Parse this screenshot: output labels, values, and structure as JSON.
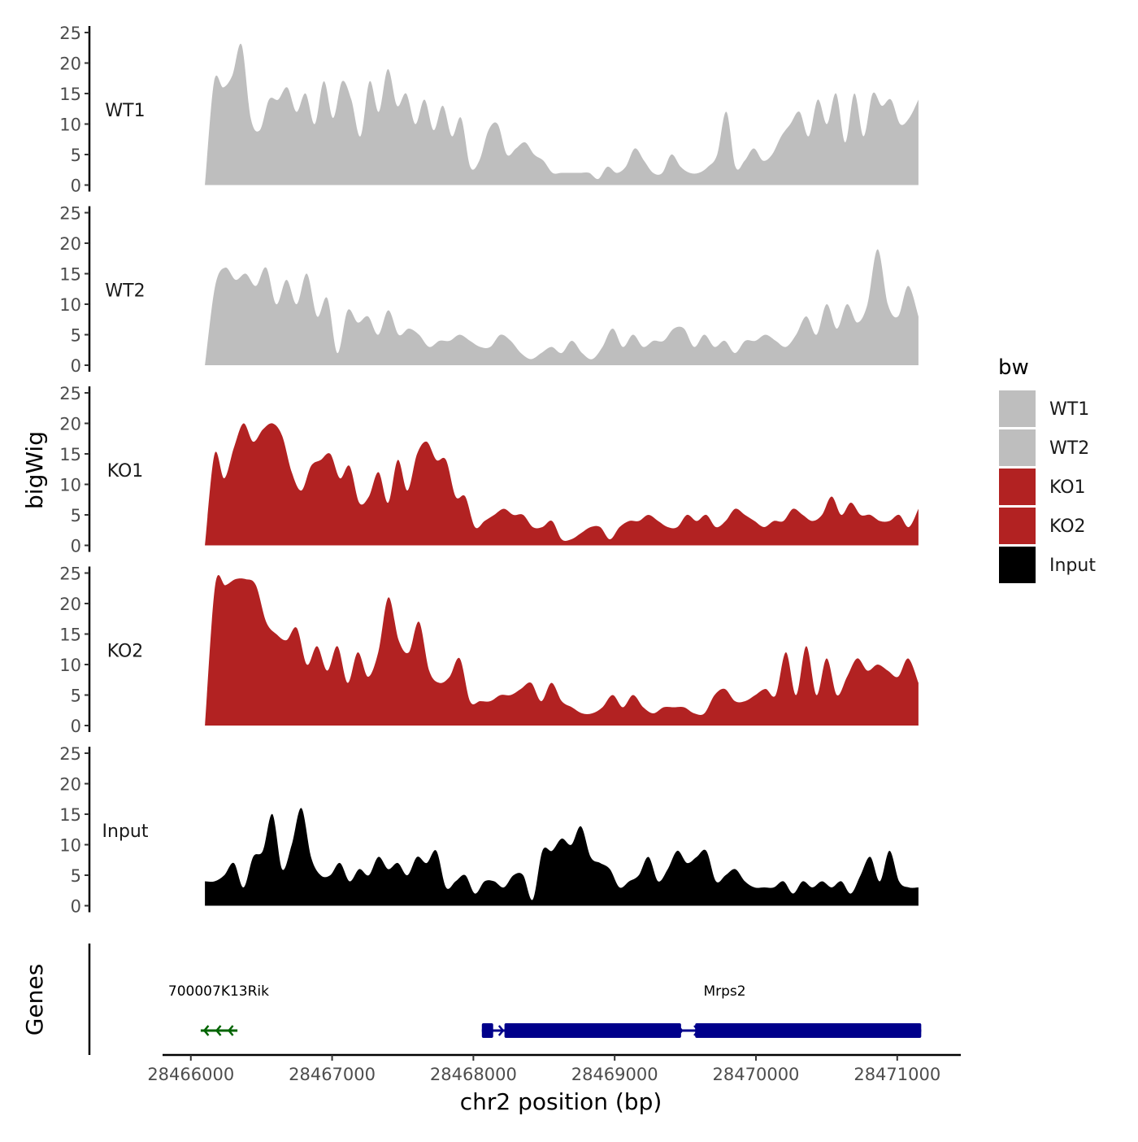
{
  "chart_data": {
    "type": "area",
    "y_axis_title": "bigWig",
    "x_axis_title": "chr2 position (bp)",
    "legend_title": "bw",
    "legend_position": "right",
    "x_range": [
      28465800,
      28471450
    ],
    "data_x_range": [
      28466100,
      28471150
    ],
    "y_range": [
      0,
      25
    ],
    "y_ticks": [
      0,
      5,
      10,
      15,
      20,
      25
    ],
    "x_ticks": [
      28466000,
      28467000,
      28468000,
      28469000,
      28470000,
      28471000
    ],
    "grid": false,
    "series": [
      {
        "name": "WT1",
        "color": "#bebebe",
        "values": [
          0,
          17,
          16,
          18,
          23,
          11,
          9,
          14,
          14,
          16,
          12,
          15,
          10,
          17,
          11,
          17,
          14,
          8,
          17,
          12,
          19,
          13,
          15,
          10,
          14,
          9,
          13,
          8,
          11,
          3,
          4,
          9,
          10,
          5,
          6,
          7,
          5,
          4,
          2,
          2,
          2,
          2,
          2,
          1,
          3,
          2,
          3,
          6,
          4,
          2,
          2,
          5,
          3,
          2,
          2,
          3,
          5,
          12,
          3,
          4,
          6,
          4,
          5,
          8,
          10,
          12,
          8,
          14,
          10,
          15,
          7,
          15,
          8,
          15,
          13,
          14,
          10,
          11,
          14
        ]
      },
      {
        "name": "WT2",
        "color": "#bebebe",
        "values": [
          0,
          13,
          16,
          14,
          15,
          13,
          16,
          10,
          14,
          10,
          15,
          8,
          11,
          2,
          9,
          7,
          8,
          5,
          9,
          5,
          6,
          5,
          3,
          4,
          4,
          5,
          4,
          3,
          3,
          5,
          4,
          2,
          1,
          2,
          3,
          2,
          4,
          2,
          1,
          3,
          6,
          3,
          5,
          3,
          4,
          4,
          6,
          6,
          3,
          5,
          3,
          4,
          2,
          4,
          4,
          5,
          4,
          3,
          5,
          8,
          5,
          10,
          6,
          10,
          7,
          10,
          19,
          10,
          8,
          13,
          8
        ]
      },
      {
        "name": "KO1",
        "color": "#b22222",
        "values": [
          0,
          15,
          11,
          16,
          20,
          17,
          19,
          20,
          18,
          12,
          9,
          13,
          14,
          15,
          11,
          13,
          7,
          8,
          12,
          7,
          14,
          9,
          15,
          17,
          14,
          14,
          8,
          8,
          3,
          4,
          5,
          6,
          5,
          5,
          3,
          3,
          4,
          1,
          1,
          2,
          3,
          3,
          1,
          3,
          4,
          4,
          5,
          4,
          3,
          3,
          5,
          4,
          5,
          3,
          4,
          6,
          5,
          4,
          3,
          4,
          4,
          6,
          5,
          4,
          5,
          8,
          5,
          7,
          5,
          5,
          4,
          4,
          5,
          3,
          6
        ]
      },
      {
        "name": "KO2",
        "color": "#b22222",
        "values": [
          0,
          23,
          23,
          24,
          24,
          23,
          17,
          15,
          14,
          16,
          10,
          13,
          9,
          13,
          7,
          12,
          8,
          12,
          21,
          14,
          12,
          17,
          9,
          7,
          8,
          11,
          4,
          4,
          4,
          5,
          5,
          6,
          7,
          4,
          7,
          4,
          3,
          2,
          2,
          3,
          5,
          3,
          5,
          3,
          2,
          3,
          3,
          3,
          2,
          2,
          5,
          6,
          4,
          4,
          5,
          6,
          5,
          12,
          5,
          13,
          5,
          11,
          5,
          8,
          11,
          9,
          10,
          9,
          8,
          11,
          7
        ]
      },
      {
        "name": "Input",
        "color": "#000000",
        "values": [
          4,
          4,
          5,
          7,
          3,
          8,
          9,
          15,
          6,
          10,
          16,
          8,
          5,
          5,
          7,
          4,
          6,
          5,
          8,
          6,
          7,
          5,
          8,
          7,
          9,
          3,
          4,
          5,
          2,
          4,
          4,
          3,
          5,
          5,
          1,
          9,
          9,
          11,
          10,
          13,
          8,
          7,
          6,
          3,
          4,
          5,
          8,
          4,
          6,
          9,
          7,
          8,
          9,
          4,
          5,
          6,
          4,
          3,
          3,
          3,
          4,
          2,
          4,
          3,
          4,
          3,
          4,
          2,
          5,
          8,
          4,
          9,
          4,
          3,
          3
        ]
      }
    ],
    "genes_track": {
      "label": "Genes",
      "genes": [
        {
          "name": "700007K13Rik",
          "start": 28466070,
          "end": 28466330,
          "strand": "-",
          "color": "#006400",
          "exons": []
        },
        {
          "name": "Mrps2",
          "start": 28468060,
          "end": 28471170,
          "strand": "+",
          "color": "#00008b",
          "exons": [
            [
              28468060,
              28468140
            ],
            [
              28468220,
              28469470
            ],
            [
              28469570,
              28471170
            ]
          ]
        }
      ]
    }
  }
}
